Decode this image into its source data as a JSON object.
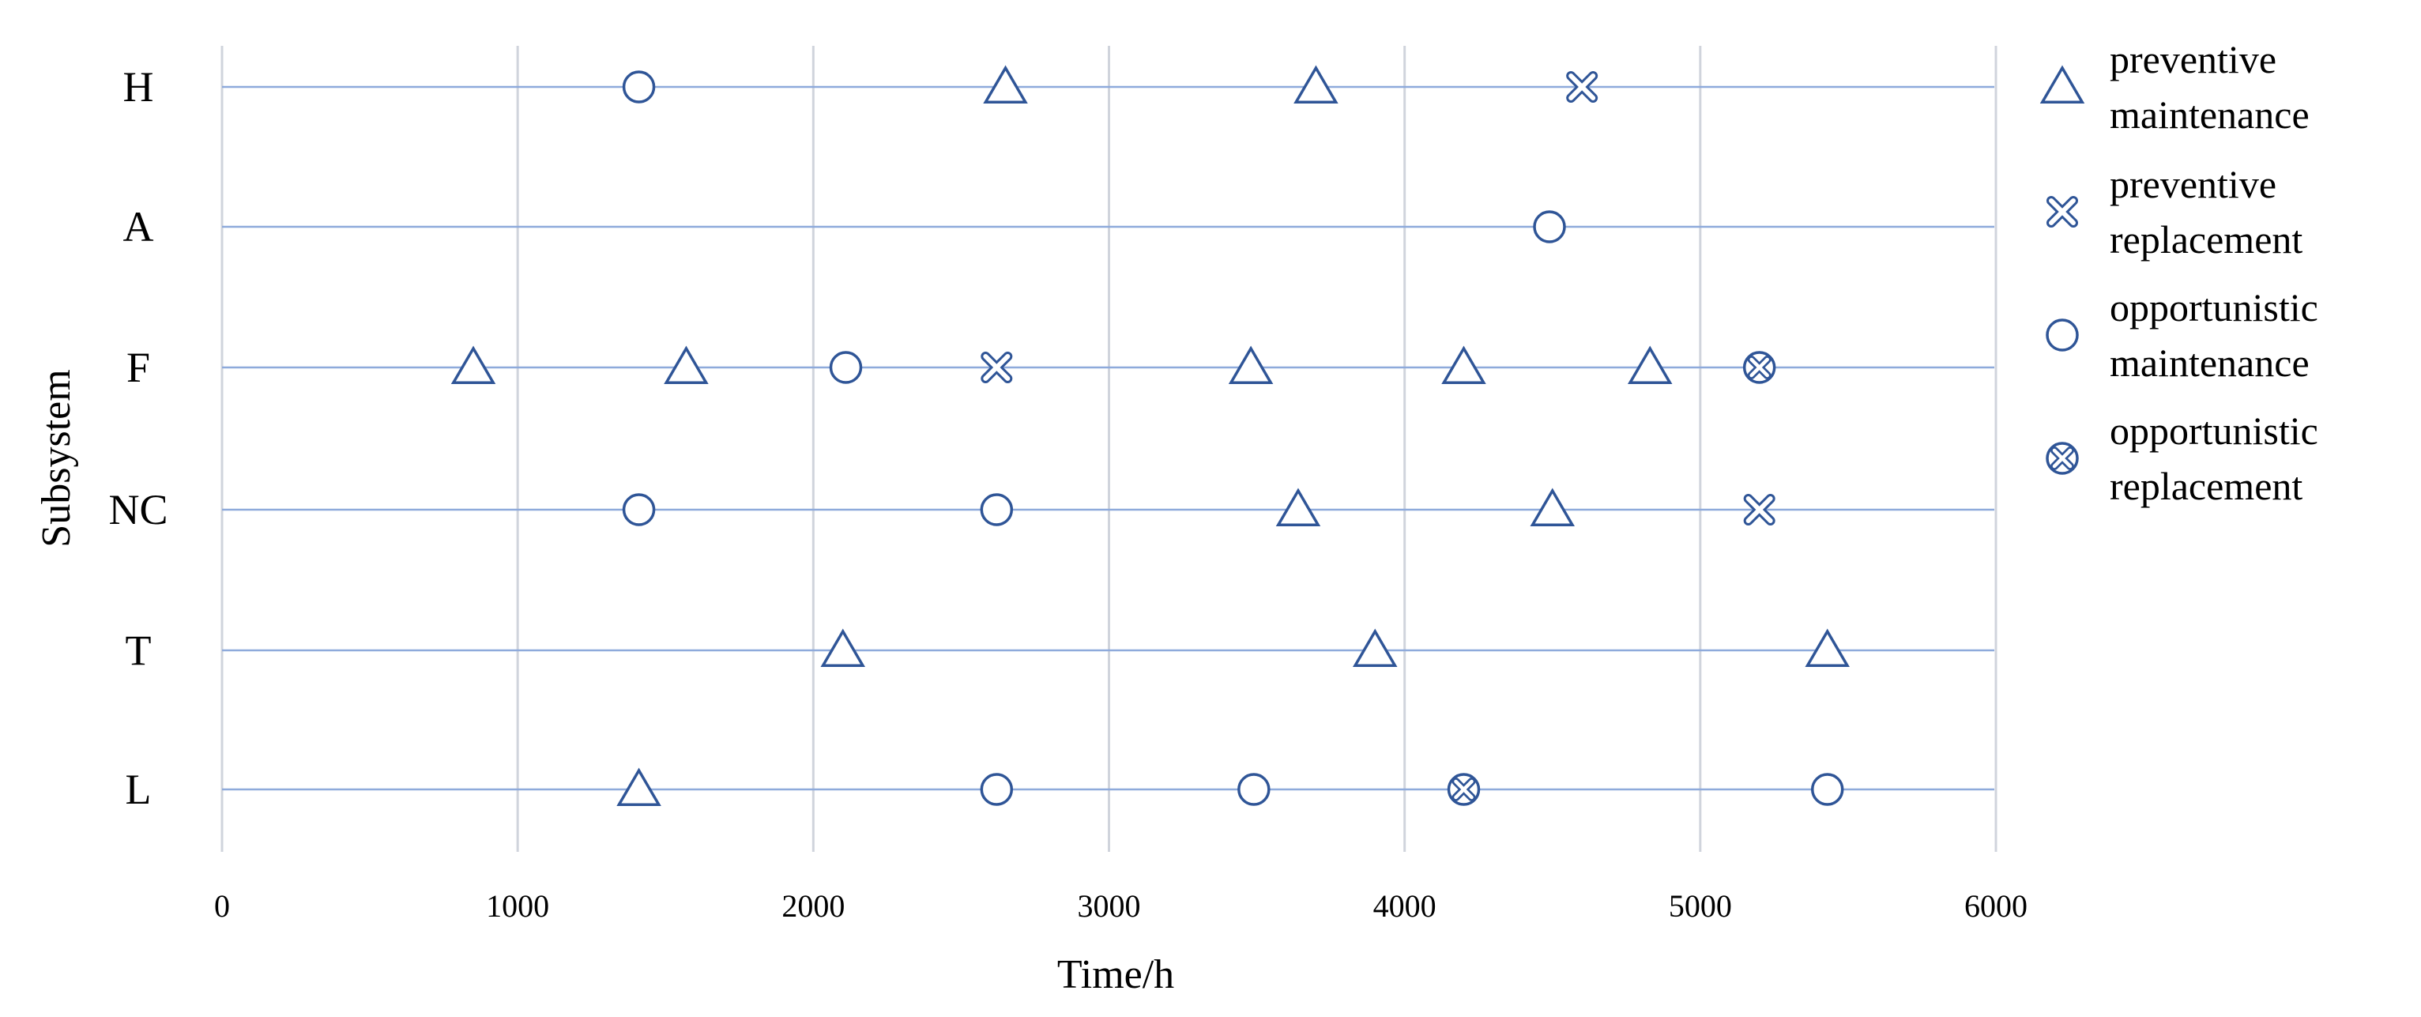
{
  "chart_data": {
    "type": "scatter",
    "xlabel": "Time/h",
    "ylabel": "Subsystem",
    "xlim": [
      0,
      6000
    ],
    "xticks": [
      "0",
      "1000",
      "2000",
      "3000",
      "4000",
      "5000",
      "6000"
    ],
    "categories": [
      "H",
      "A",
      "F",
      "NC",
      "T",
      "L"
    ],
    "grid": true,
    "legend_position": "right",
    "marker_color": "#2f5597",
    "line_color": "#8eaadb",
    "grid_color": "#d0d4dc",
    "legend": [
      {
        "line1": "preventive",
        "line2": "maintenance",
        "marker": "triangle"
      },
      {
        "line1": "preventive",
        "line2": "replacement",
        "marker": "cross"
      },
      {
        "line1": "opportunistic",
        "line2": "maintenance",
        "marker": "circle"
      },
      {
        "line1": "opportunistic",
        "line2": "replacement",
        "marker": "circle-cross"
      }
    ],
    "series": [
      {
        "type": "preventive maintenance",
        "marker": "triangle",
        "points": [
          {
            "subsystem": "H",
            "x": 2650
          },
          {
            "subsystem": "H",
            "x": 3700
          },
          {
            "subsystem": "F",
            "x": 850
          },
          {
            "subsystem": "F",
            "x": 1570
          },
          {
            "subsystem": "F",
            "x": 3480
          },
          {
            "subsystem": "F",
            "x": 4200
          },
          {
            "subsystem": "F",
            "x": 4830
          },
          {
            "subsystem": "NC",
            "x": 3640
          },
          {
            "subsystem": "NC",
            "x": 4500
          },
          {
            "subsystem": "T",
            "x": 2100
          },
          {
            "subsystem": "T",
            "x": 3900
          },
          {
            "subsystem": "T",
            "x": 5430
          },
          {
            "subsystem": "L",
            "x": 1410
          }
        ]
      },
      {
        "type": "preventive replacement",
        "marker": "cross",
        "points": [
          {
            "subsystem": "H",
            "x": 4600
          },
          {
            "subsystem": "F",
            "x": 2620
          },
          {
            "subsystem": "NC",
            "x": 5200
          }
        ]
      },
      {
        "type": "opportunistic maintenance",
        "marker": "circle",
        "points": [
          {
            "subsystem": "H",
            "x": 1410
          },
          {
            "subsystem": "A",
            "x": 4490
          },
          {
            "subsystem": "F",
            "x": 2110
          },
          {
            "subsystem": "NC",
            "x": 1410
          },
          {
            "subsystem": "NC",
            "x": 2620
          },
          {
            "subsystem": "L",
            "x": 2620
          },
          {
            "subsystem": "L",
            "x": 3490
          },
          {
            "subsystem": "L",
            "x": 5430
          }
        ]
      },
      {
        "type": "opportunistic replacement",
        "marker": "circle-cross",
        "points": [
          {
            "subsystem": "F",
            "x": 5200
          },
          {
            "subsystem": "L",
            "x": 4200
          }
        ]
      }
    ]
  }
}
